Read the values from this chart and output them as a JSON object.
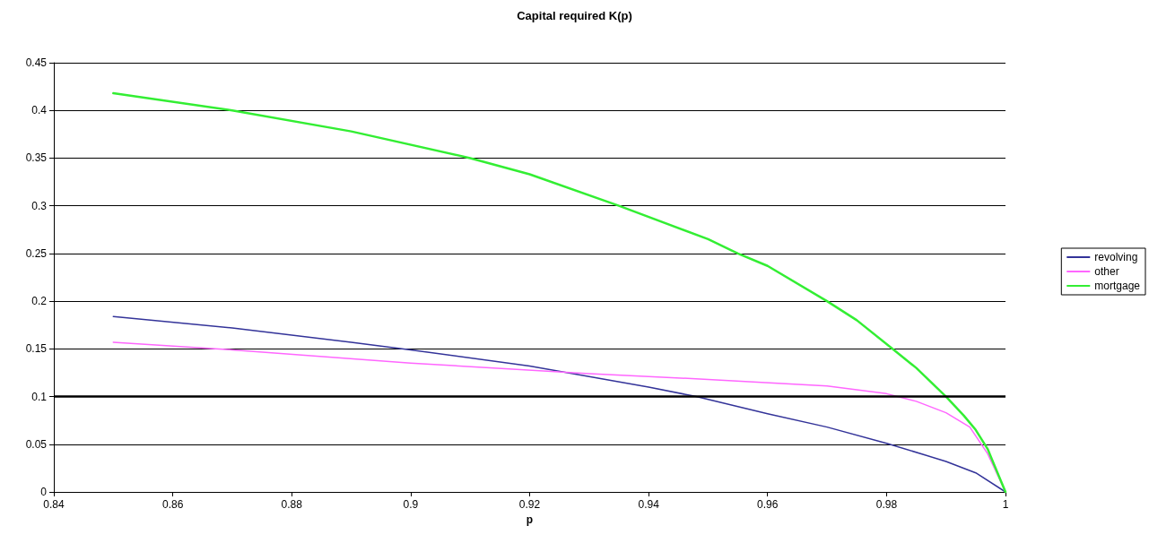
{
  "chart_data": {
    "type": "line",
    "title": "Capital required K(p)",
    "xlabel": "p",
    "xlim": [
      0.84,
      1
    ],
    "xticks": [
      0.84,
      0.86,
      0.88,
      0.9,
      0.92,
      0.94,
      0.96,
      0.98,
      1
    ],
    "ylim": [
      0,
      0.45
    ],
    "yticks": [
      0,
      0.05,
      0.1,
      0.15,
      0.2,
      0.25,
      0.3,
      0.35,
      0.4,
      0.45
    ],
    "grid": "y",
    "legend": "right",
    "marker": "none",
    "line_style": "solid",
    "ref_lines": [
      {
        "axis": "y",
        "value": 0.1,
        "color": "#000000"
      }
    ],
    "series": [
      {
        "name": "revolving",
        "color": "#333399",
        "x": [
          0.85,
          0.87,
          0.89,
          0.9,
          0.92,
          0.94,
          0.948,
          0.96,
          0.97,
          0.98,
          0.99,
          0.995,
          1
        ],
        "values": [
          0.184,
          0.172,
          0.157,
          0.149,
          0.132,
          0.11,
          0.1,
          0.082,
          0.068,
          0.051,
          0.032,
          0.02,
          0
        ]
      },
      {
        "name": "other",
        "color": "#ff66ff",
        "x": [
          0.85,
          0.87,
          0.9,
          0.93,
          0.95,
          0.97,
          0.98,
          0.985,
          0.99,
          0.994,
          0.997,
          1
        ],
        "values": [
          0.157,
          0.149,
          0.135,
          0.124,
          0.118,
          0.111,
          0.103,
          0.095,
          0.083,
          0.068,
          0.04,
          0
        ]
      },
      {
        "name": "mortgage",
        "color": "#33ee33",
        "x": [
          0.85,
          0.87,
          0.89,
          0.91,
          0.92,
          0.935,
          0.95,
          0.955,
          0.96,
          0.97,
          0.975,
          0.981,
          0.985,
          0.99,
          0.993,
          0.995,
          0.997,
          1
        ],
        "values": [
          0.418,
          0.4,
          0.378,
          0.35,
          0.333,
          0.3,
          0.265,
          0.25,
          0.237,
          0.2,
          0.18,
          0.15,
          0.13,
          0.1,
          0.08,
          0.065,
          0.045,
          0
        ]
      }
    ]
  }
}
